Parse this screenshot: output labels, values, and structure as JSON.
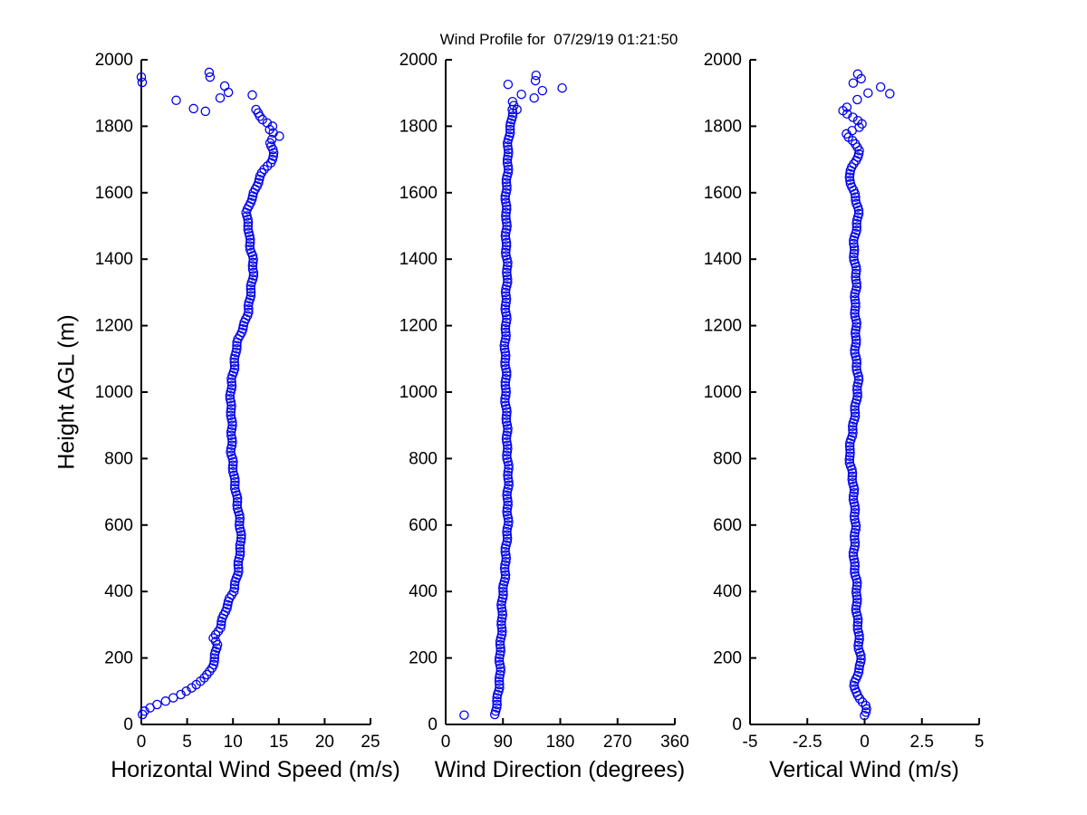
{
  "title": "Wind Profile for  07/29/19 01:21:50",
  "ylabel": "Height AGL (m)",
  "background": "#ffffff",
  "axis_color": "#000000",
  "marker": {
    "shape": "circle",
    "color": "#0000ee",
    "radius": 4.6,
    "stroke_width": 1.3
  },
  "ylim": [
    0,
    2000
  ],
  "yticks": [
    0,
    200,
    400,
    600,
    800,
    1000,
    1200,
    1400,
    1600,
    1800,
    2000
  ],
  "chart_data": [
    {
      "type": "scatter",
      "name": "horizontal-wind-speed",
      "xlabel": "Horizontal Wind Speed (m/s)",
      "xlim": [
        0,
        25
      ],
      "xticks": [
        0,
        5,
        10,
        15,
        20,
        25
      ],
      "grid": false,
      "sample_step_m": 10,
      "jitter": 0.09,
      "profile_height_value": [
        [
          30,
          0.1
        ],
        [
          40,
          0.4
        ],
        [
          50,
          1.0
        ],
        [
          60,
          1.7
        ],
        [
          70,
          2.6
        ],
        [
          80,
          3.5
        ],
        [
          90,
          4.4
        ],
        [
          100,
          5.0
        ],
        [
          110,
          5.5
        ],
        [
          125,
          6.1
        ],
        [
          140,
          6.8
        ],
        [
          155,
          7.3
        ],
        [
          170,
          7.6
        ],
        [
          185,
          7.8
        ],
        [
          200,
          8.0
        ],
        [
          215,
          8.1
        ],
        [
          230,
          8.2
        ],
        [
          245,
          8.3
        ],
        [
          258,
          7.9
        ],
        [
          272,
          8.2
        ],
        [
          290,
          8.5
        ],
        [
          310,
          8.7
        ],
        [
          340,
          9.1
        ],
        [
          370,
          9.6
        ],
        [
          400,
          10.1
        ],
        [
          440,
          10.4
        ],
        [
          480,
          10.6
        ],
        [
          520,
          10.8
        ],
        [
          550,
          11.0
        ],
        [
          590,
          10.8
        ],
        [
          630,
          10.6
        ],
        [
          670,
          10.5
        ],
        [
          700,
          10.4
        ],
        [
          740,
          10.1
        ],
        [
          780,
          9.9
        ],
        [
          820,
          9.8
        ],
        [
          860,
          9.9
        ],
        [
          900,
          9.8
        ],
        [
          950,
          9.7
        ],
        [
          1000,
          9.8
        ],
        [
          1040,
          9.9
        ],
        [
          1080,
          10.1
        ],
        [
          1120,
          10.3
        ],
        [
          1160,
          10.7
        ],
        [
          1200,
          11.2
        ],
        [
          1240,
          11.6
        ],
        [
          1280,
          11.9
        ],
        [
          1320,
          12.1
        ],
        [
          1360,
          12.2
        ],
        [
          1400,
          12.1
        ],
        [
          1440,
          11.9
        ],
        [
          1480,
          11.8
        ],
        [
          1515,
          11.5
        ],
        [
          1540,
          11.4
        ],
        [
          1565,
          11.7
        ],
        [
          1590,
          12.2
        ],
        [
          1620,
          12.6
        ],
        [
          1650,
          13.0
        ],
        [
          1675,
          13.4
        ],
        [
          1695,
          14.2
        ],
        [
          1715,
          14.5
        ],
        [
          1730,
          14.3
        ],
        [
          1745,
          14.0
        ],
        [
          1758,
          14.2
        ],
        [
          1770,
          15.2
        ],
        [
          1782,
          14.3
        ],
        [
          1792,
          13.9
        ],
        [
          1802,
          14.4
        ],
        [
          1812,
          13.6
        ],
        [
          1822,
          13.2
        ],
        [
          1835,
          12.8
        ],
        [
          1850,
          12.4
        ]
      ],
      "extra_points_value_height": [
        [
          0.0,
          1948
        ],
        [
          0.1,
          1932
        ],
        [
          3.8,
          1878
        ],
        [
          5.7,
          1853
        ],
        [
          7.0,
          1845
        ],
        [
          7.4,
          1962
        ],
        [
          7.5,
          1948
        ],
        [
          8.6,
          1885
        ],
        [
          9.1,
          1921
        ],
        [
          9.5,
          1902
        ],
        [
          12.1,
          1894
        ]
      ]
    },
    {
      "type": "scatter",
      "name": "wind-direction",
      "xlabel": "Wind Direction (degrees)",
      "xlim": [
        0,
        360
      ],
      "xticks": [
        0,
        90,
        180,
        270,
        360
      ],
      "grid": false,
      "sample_step_m": 10,
      "jitter": 1.2,
      "profile_height_value": [
        [
          30,
          78
        ],
        [
          55,
          80
        ],
        [
          80,
          82
        ],
        [
          110,
          83
        ],
        [
          140,
          84.5
        ],
        [
          170,
          85.5
        ],
        [
          200,
          86
        ],
        [
          240,
          87
        ],
        [
          280,
          87.5
        ],
        [
          320,
          88.5
        ],
        [
          360,
          89.5
        ],
        [
          400,
          90.5
        ],
        [
          450,
          92.5
        ],
        [
          500,
          94.5
        ],
        [
          550,
          95.5
        ],
        [
          600,
          96.5
        ],
        [
          650,
          97
        ],
        [
          700,
          97.5
        ],
        [
          750,
          97.5
        ],
        [
          800,
          97.5
        ],
        [
          850,
          97
        ],
        [
          900,
          96
        ],
        [
          950,
          95.5
        ],
        [
          1000,
          95
        ],
        [
          1050,
          94.5
        ],
        [
          1100,
          94
        ],
        [
          1160,
          94
        ],
        [
          1220,
          94
        ],
        [
          1270,
          94.5
        ],
        [
          1310,
          95.5
        ],
        [
          1360,
          95.5
        ],
        [
          1410,
          95.5
        ],
        [
          1460,
          95
        ],
        [
          1510,
          94.5
        ],
        [
          1560,
          95
        ],
        [
          1610,
          96
        ],
        [
          1660,
          97
        ],
        [
          1700,
          98
        ],
        [
          1740,
          99
        ],
        [
          1775,
          100.5
        ],
        [
          1805,
          102
        ],
        [
          1830,
          103.5
        ],
        [
          1850,
          104.5
        ]
      ],
      "extra_points_value_height": [
        [
          29,
          28
        ],
        [
          98,
          1926
        ],
        [
          142,
          1953
        ],
        [
          141,
          1937
        ],
        [
          152,
          1907
        ],
        [
          183,
          1915
        ],
        [
          119,
          1896
        ],
        [
          139,
          1885
        ],
        [
          105,
          1874
        ],
        [
          112,
          1850
        ],
        [
          107,
          1862
        ]
      ]
    },
    {
      "type": "scatter",
      "name": "vertical-wind",
      "xlabel": "Vertical Wind (m/s)",
      "xlim": [
        -5,
        5
      ],
      "xticks": [
        -5,
        -2.5,
        0,
        2.5,
        5
      ],
      "grid": false,
      "sample_step_m": 10,
      "jitter": 0.035,
      "profile_height_value": [
        [
          27,
          0.02
        ],
        [
          40,
          0.08
        ],
        [
          55,
          0.12
        ],
        [
          70,
          -0.08
        ],
        [
          85,
          -0.3
        ],
        [
          100,
          -0.42
        ],
        [
          115,
          -0.46
        ],
        [
          130,
          -0.42
        ],
        [
          145,
          -0.35
        ],
        [
          160,
          -0.25
        ],
        [
          175,
          -0.17
        ],
        [
          190,
          -0.12
        ],
        [
          210,
          -0.18
        ],
        [
          230,
          -0.25
        ],
        [
          255,
          -0.28
        ],
        [
          290,
          -0.3
        ],
        [
          330,
          -0.33
        ],
        [
          370,
          -0.35
        ],
        [
          410,
          -0.37
        ],
        [
          450,
          -0.42
        ],
        [
          490,
          -0.45
        ],
        [
          530,
          -0.46
        ],
        [
          570,
          -0.44
        ],
        [
          610,
          -0.41
        ],
        [
          640,
          -0.4
        ],
        [
          670,
          -0.43
        ],
        [
          710,
          -0.49
        ],
        [
          750,
          -0.54
        ],
        [
          790,
          -0.6
        ],
        [
          820,
          -0.63
        ],
        [
          855,
          -0.6
        ],
        [
          890,
          -0.53
        ],
        [
          925,
          -0.44
        ],
        [
          960,
          -0.37
        ],
        [
          1000,
          -0.32
        ],
        [
          1045,
          -0.32
        ],
        [
          1085,
          -0.36
        ],
        [
          1125,
          -0.4
        ],
        [
          1170,
          -0.41
        ],
        [
          1220,
          -0.4
        ],
        [
          1270,
          -0.4
        ],
        [
          1320,
          -0.38
        ],
        [
          1365,
          -0.38
        ],
        [
          1405,
          -0.42
        ],
        [
          1445,
          -0.45
        ],
        [
          1475,
          -0.42
        ],
        [
          1505,
          -0.34
        ],
        [
          1535,
          -0.27
        ],
        [
          1555,
          -0.25
        ],
        [
          1580,
          -0.36
        ],
        [
          1605,
          -0.47
        ],
        [
          1630,
          -0.62
        ],
        [
          1650,
          -0.73
        ],
        [
          1667,
          -0.64
        ],
        [
          1682,
          -0.5
        ],
        [
          1697,
          -0.38
        ],
        [
          1712,
          -0.28
        ],
        [
          1727,
          -0.2
        ],
        [
          1742,
          -0.32
        ],
        [
          1755,
          -0.52
        ],
        [
          1767,
          -0.75
        ],
        [
          1777,
          -0.82
        ],
        [
          1787,
          -0.55
        ],
        [
          1797,
          -0.25
        ],
        [
          1805,
          -0.12
        ],
        [
          1815,
          -0.32
        ],
        [
          1825,
          -0.52
        ],
        [
          1835,
          -0.72
        ],
        [
          1845,
          -0.95
        ],
        [
          1862,
          -0.68
        ]
      ],
      "extra_points_value_height": [
        [
          -0.3,
          1957
        ],
        [
          -0.15,
          1943
        ],
        [
          -0.5,
          1930
        ],
        [
          0.15,
          1900
        ],
        [
          -0.32,
          1880
        ],
        [
          0.7,
          1918
        ],
        [
          1.1,
          1898
        ]
      ]
    }
  ]
}
